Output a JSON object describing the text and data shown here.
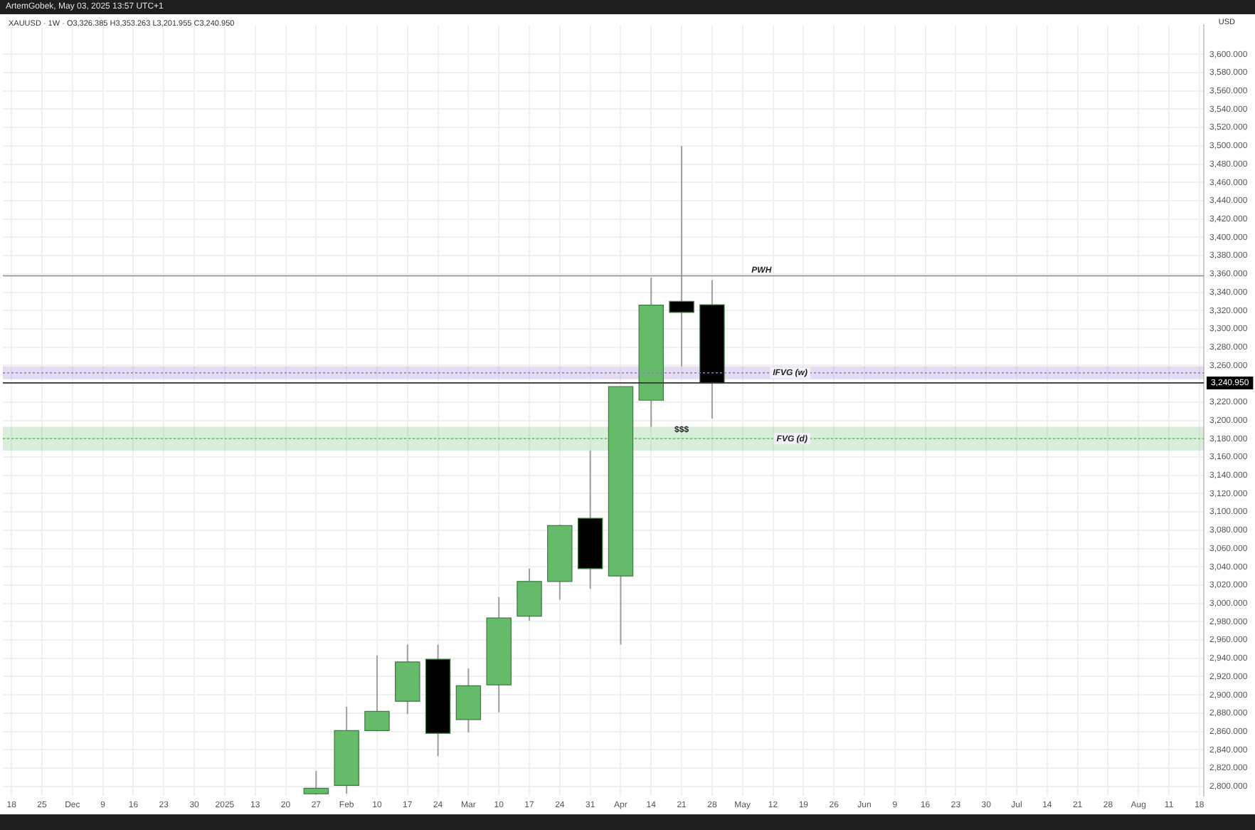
{
  "chart_data": {
    "type": "candlestick",
    "title": "ArtemGobek, May 03, 2025 13:57 UTC+1",
    "subtitle": "XAUUSD · 1W · O3,326.385 H3,353.263 L3,201.955 C3,240.950",
    "ylabel": "USD",
    "x": [
      "2025-01-27",
      "2025-02-03",
      "2025-02-10",
      "2025-02-17",
      "2025-02-24",
      "2025-03-03",
      "2025-03-10",
      "2025-03-17",
      "2025-03-24",
      "2025-03-31",
      "2025-04-07",
      "2025-04-14",
      "2025-04-21",
      "2025-04-28"
    ],
    "ohlc": [
      [
        2792,
        2817,
        2791,
        2798
      ],
      [
        2801,
        2887,
        2792,
        2861
      ],
      [
        2861,
        2943,
        2860,
        2882
      ],
      [
        2893,
        2955,
        2879,
        2936
      ],
      [
        2939,
        2955,
        2833,
        2858
      ],
      [
        2873,
        2929,
        2859,
        2910
      ],
      [
        2911,
        3007,
        2881,
        2984
      ],
      [
        2986,
        3038,
        2981,
        3024
      ],
      [
        3024,
        3086,
        3004,
        3085
      ],
      [
        3093,
        3167,
        3016,
        3038
      ],
      [
        3030,
        3237,
        2955,
        3237
      ],
      [
        3222,
        3356,
        3193,
        3326
      ],
      [
        3330,
        3500,
        3259,
        3318
      ],
      [
        3326.385,
        3353.263,
        3201.955,
        3240.95
      ]
    ],
    "colors": [
      "#66bb6a",
      "#66bb6a",
      "#66bb6a",
      "#66bb6a",
      "#000000",
      "#66bb6a",
      "#66bb6a",
      "#66bb6a",
      "#66bb6a",
      "#000000",
      "#66bb6a",
      "#66bb6a",
      "#000000",
      "#000000"
    ],
    "xlim": [
      "2024-11-16",
      "2025-08-19"
    ],
    "xticks": [
      {
        "value": "2024-11-18",
        "label": "18"
      },
      {
        "value": "2024-11-25",
        "label": "25"
      },
      {
        "value": "2024-12-02",
        "label": "Dec"
      },
      {
        "value": "2024-12-09",
        "label": "9"
      },
      {
        "value": "2024-12-16",
        "label": "16"
      },
      {
        "value": "2024-12-23",
        "label": "23"
      },
      {
        "value": "2024-12-30",
        "label": "30"
      },
      {
        "value": "2025-01-06",
        "label": "2025"
      },
      {
        "value": "2025-01-13",
        "label": "13"
      },
      {
        "value": "2025-01-20",
        "label": "20"
      },
      {
        "value": "2025-01-27",
        "label": "27"
      },
      {
        "value": "2025-02-03",
        "label": "Feb"
      },
      {
        "value": "2025-02-10",
        "label": "10"
      },
      {
        "value": "2025-02-17",
        "label": "17"
      },
      {
        "value": "2025-02-24",
        "label": "24"
      },
      {
        "value": "2025-03-03",
        "label": "Mar"
      },
      {
        "value": "2025-03-10",
        "label": "10"
      },
      {
        "value": "2025-03-17",
        "label": "17"
      },
      {
        "value": "2025-03-24",
        "label": "24"
      },
      {
        "value": "2025-03-31",
        "label": "31"
      },
      {
        "value": "2025-04-07",
        "label": "Apr"
      },
      {
        "value": "2025-04-14",
        "label": "14"
      },
      {
        "value": "2025-04-21",
        "label": "21"
      },
      {
        "value": "2025-04-28",
        "label": "28"
      },
      {
        "value": "2025-05-05",
        "label": "May"
      },
      {
        "value": "2025-05-12",
        "label": "12"
      },
      {
        "value": "2025-05-19",
        "label": "19"
      },
      {
        "value": "2025-05-26",
        "label": "26"
      },
      {
        "value": "2025-06-02",
        "label": "Jun"
      },
      {
        "value": "2025-06-09",
        "label": "9"
      },
      {
        "value": "2025-06-16",
        "label": "16"
      },
      {
        "value": "2025-06-23",
        "label": "23"
      },
      {
        "value": "2025-06-30",
        "label": "30"
      },
      {
        "value": "2025-07-07",
        "label": "Jul"
      },
      {
        "value": "2025-07-14",
        "label": "14"
      },
      {
        "value": "2025-07-21",
        "label": "21"
      },
      {
        "value": "2025-07-28",
        "label": "28"
      },
      {
        "value": "2025-08-04",
        "label": "Aug"
      },
      {
        "value": "2025-08-11",
        "label": "11"
      },
      {
        "value": "2025-08-18",
        "label": "18"
      }
    ],
    "ylim": [
      2790,
      3632
    ],
    "yticks": [
      {
        "value": 2800,
        "label": "2,800.000"
      },
      {
        "value": 2820,
        "label": "2,820.000"
      },
      {
        "value": 2840,
        "label": "2,840.000"
      },
      {
        "value": 2860,
        "label": "2,860.000"
      },
      {
        "value": 2880,
        "label": "2,880.000"
      },
      {
        "value": 2900,
        "label": "2,900.000"
      },
      {
        "value": 2920,
        "label": "2,920.000"
      },
      {
        "value": 2940,
        "label": "2,940.000"
      },
      {
        "value": 2960,
        "label": "2,960.000"
      },
      {
        "value": 2980,
        "label": "2,980.000"
      },
      {
        "value": 3000,
        "label": "3,000.000"
      },
      {
        "value": 3020,
        "label": "3,020.000"
      },
      {
        "value": 3040,
        "label": "3,040.000"
      },
      {
        "value": 3060,
        "label": "3,060.000"
      },
      {
        "value": 3080,
        "label": "3,080.000"
      },
      {
        "value": 3100,
        "label": "3,100.000"
      },
      {
        "value": 3120,
        "label": "3,120.000"
      },
      {
        "value": 3140,
        "label": "3,140.000"
      },
      {
        "value": 3160,
        "label": "3,160.000"
      },
      {
        "value": 3180,
        "label": "3,180.000"
      },
      {
        "value": 3200,
        "label": "3,200.000"
      },
      {
        "value": 3220,
        "label": "3,220.000"
      },
      {
        "value": 3240,
        "label": null
      },
      {
        "value": 3260,
        "label": "3,260.000"
      },
      {
        "value": 3280,
        "label": "3,280.000"
      },
      {
        "value": 3300,
        "label": "3,300.000"
      },
      {
        "value": 3320,
        "label": "3,320.000"
      },
      {
        "value": 3340,
        "label": "3,340.000"
      },
      {
        "value": 3360,
        "label": "3,360.000"
      },
      {
        "value": 3380,
        "label": "3,380.000"
      },
      {
        "value": 3400,
        "label": "3,400.000"
      },
      {
        "value": 3420,
        "label": "3,420.000"
      },
      {
        "value": 3440,
        "label": "3,440.000"
      },
      {
        "value": 3460,
        "label": "3,460.000"
      },
      {
        "value": 3480,
        "label": "3,480.000"
      },
      {
        "value": 3500,
        "label": "3,500.000"
      },
      {
        "value": 3520,
        "label": "3,520.000"
      },
      {
        "value": 3540,
        "label": "3,540.000"
      },
      {
        "value": 3560,
        "label": "3,560.000"
      },
      {
        "value": 3580,
        "label": "3,580.000"
      },
      {
        "value": 3600,
        "label": "3,600.000"
      }
    ],
    "grid": true,
    "ref_lines": [
      {
        "axis": "y",
        "value": 3240.95,
        "label": "3,240.950",
        "color": "#333333"
      },
      {
        "axis": "y",
        "value": 3358,
        "label": "PWH",
        "color": "#888888"
      },
      {
        "axis": "y",
        "value": 3252,
        "color": "#9575cd",
        "line_style": "dotted"
      },
      {
        "axis": "y",
        "value": 3180,
        "color": "#66bb6a",
        "line_style": "dotted"
      }
    ],
    "bands": [
      {
        "axis": "y",
        "from": 3245,
        "to": 3259,
        "label": "IFVG (w)",
        "color": "#9575cd"
      },
      {
        "axis": "y",
        "from": 3167,
        "to": 3193,
        "label": "FVG (d)",
        "color": "#66bb6a"
      }
    ],
    "annotations": [
      {
        "text": "$$$",
        "x": "2025-04-21",
        "y": 3190
      }
    ]
  }
}
